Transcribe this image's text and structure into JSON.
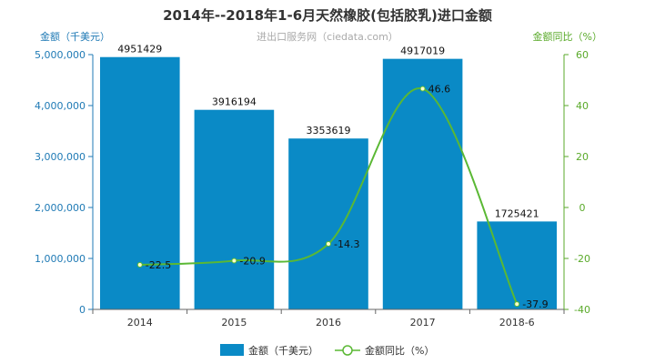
{
  "chart_data": {
    "type": "bar",
    "title": "2014年--2018年1-6月天然橡胶(包括胶乳)进口金额",
    "subtitle": "进出口服务网（ciedata.com）",
    "categories": [
      "2014",
      "2015",
      "2016",
      "2017",
      "2018-6"
    ],
    "series": [
      {
        "name": "金额（千美元）",
        "type": "bar",
        "axis": "left",
        "color": "#0a8ac6",
        "values": [
          4951429,
          3916194,
          3353619,
          4917019,
          1725421
        ]
      },
      {
        "name": "金额同比（%）",
        "type": "line",
        "axis": "right",
        "color": "#5ab834",
        "values": [
          -22.5,
          -20.9,
          -14.3,
          46.6,
          -37.9
        ]
      }
    ],
    "ylabel_left": "金额（千美元）",
    "ylabel_right": "金额同比（%）",
    "ylim_left": [
      0,
      5000000
    ],
    "ylim_right": [
      -40,
      60
    ],
    "yticks_left": [
      "0",
      "1,000,000",
      "2,000,000",
      "3,000,000",
      "4,000,000",
      "5,000,000"
    ],
    "yticks_right": [
      "-40",
      "-20",
      "0",
      "20",
      "40",
      "60"
    ],
    "grid": false,
    "legend_position": "bottom"
  }
}
